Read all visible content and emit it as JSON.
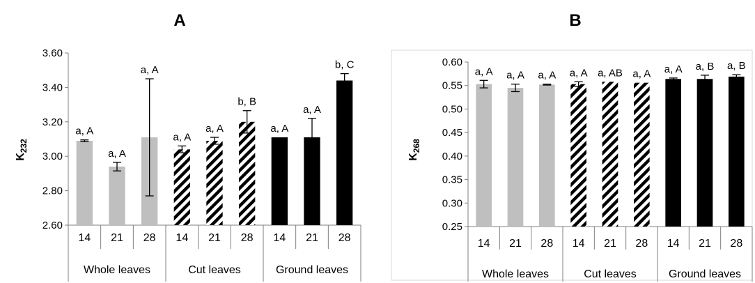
{
  "patterns": {
    "Whole leaves": "solid-light-gray",
    "Cut leaves": "black-white-diagonal-stripes",
    "Ground leaves": "solid-black"
  },
  "colors": {
    "Whole leaves": "#bfbfbf",
    "Cut leaves": "#000000",
    "Ground leaves": "#000000"
  },
  "chart_data": [
    {
      "type": "bar",
      "title": "A",
      "ylabel_main": "K",
      "ylabel_sub": "232",
      "ylim": [
        2.6,
        3.6
      ],
      "yticks": [
        "2.60",
        "2.80",
        "3.00",
        "3.20",
        "3.40",
        "3.60"
      ],
      "categories": [
        "14",
        "21",
        "28",
        "14",
        "21",
        "28",
        "14",
        "21",
        "28"
      ],
      "groups": [
        {
          "name": "Whole leaves",
          "categories": [
            "14",
            "21",
            "28"
          ]
        },
        {
          "name": "Cut leaves",
          "categories": [
            "14",
            "21",
            "28"
          ]
        },
        {
          "name": "Ground leaves",
          "categories": [
            "14",
            "21",
            "28"
          ]
        }
      ],
      "values": [
        3.09,
        2.94,
        3.11,
        3.04,
        3.09,
        3.2,
        3.11,
        3.11,
        3.44
      ],
      "errors": [
        0.005,
        0.025,
        0.34,
        0.02,
        0.02,
        0.065,
        0.0,
        0.11,
        0.04
      ],
      "labels": [
        "a, A",
        "a, A",
        "a, A",
        "a, A",
        "a, A",
        "b, B",
        "a, A",
        "a, A",
        "b, C"
      ],
      "grid": false
    },
    {
      "type": "bar",
      "title": "B",
      "ylabel_main": "K",
      "ylabel_sub": "268",
      "ylim": [
        0.25,
        0.6
      ],
      "yticks": [
        "0.25",
        "0.30",
        "0.35",
        "0.40",
        "0.45",
        "0.50",
        "0.55",
        "0.60"
      ],
      "categories": [
        "14",
        "21",
        "28",
        "14",
        "21",
        "28",
        "14",
        "21",
        "28"
      ],
      "groups": [
        {
          "name": "Whole leaves",
          "categories": [
            "14",
            "21",
            "28"
          ]
        },
        {
          "name": "Cut leaves",
          "categories": [
            "14",
            "21",
            "28"
          ]
        },
        {
          "name": "Ground leaves",
          "categories": [
            "14",
            "21",
            "28"
          ]
        }
      ],
      "values": [
        0.553,
        0.545,
        0.552,
        0.553,
        0.558,
        0.556,
        0.564,
        0.564,
        0.569
      ],
      "errors": [
        0.008,
        0.008,
        0.001,
        0.005,
        0.0,
        0.0,
        0.002,
        0.008,
        0.004
      ],
      "labels": [
        "a, A",
        "a, A",
        "a, A",
        "a, A",
        "a, AB",
        "a, A",
        "a, A",
        "a, B",
        "a, B"
      ],
      "grid": false
    }
  ]
}
